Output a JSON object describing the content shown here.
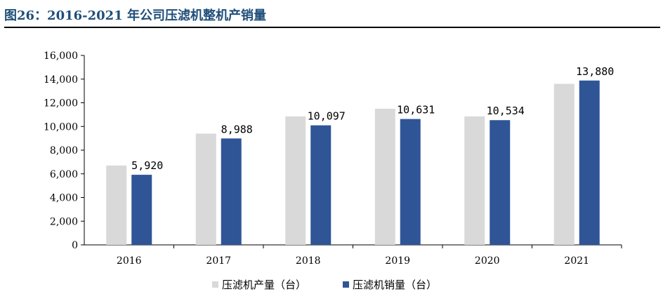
{
  "title": "图26：2016-2021 年公司压滤机整机产销量",
  "colors": {
    "production": "#d9d9d9",
    "sales": "#2f5597",
    "title": "#1f4e79"
  },
  "chart_data": {
    "type": "bar",
    "categories": [
      "2016",
      "2017",
      "2018",
      "2019",
      "2020",
      "2021"
    ],
    "series": [
      {
        "name": "压滤机产量（台）",
        "values": [
          6700,
          9400,
          10850,
          11500,
          10850,
          13600
        ]
      },
      {
        "name": "压滤机销量（台）",
        "values": [
          5920,
          8988,
          10097,
          10631,
          10534,
          13880
        ],
        "labels": [
          "5,920",
          "8,988",
          "10,097",
          "10,631",
          "10,534",
          "13,880"
        ]
      }
    ],
    "ylim": [
      0,
      16000
    ],
    "yticks": [
      "0",
      "2,000",
      "4,000",
      "6,000",
      "8,000",
      "10,000",
      "12,000",
      "14,000",
      "16,000"
    ],
    "grid": false,
    "legend": "bottom-center"
  }
}
